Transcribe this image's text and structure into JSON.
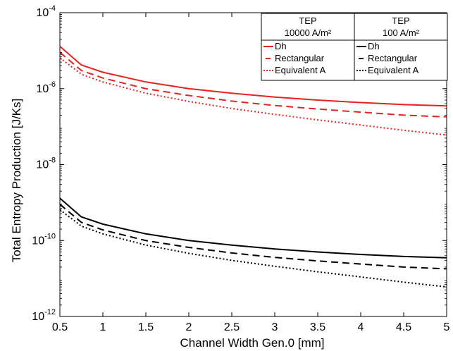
{
  "chart_data": {
    "type": "line",
    "xlabel": "Channel Width Gen.0 [mm]",
    "ylabel": "Total Entropy Production [J/Ks]",
    "xlim": [
      0.5,
      5
    ],
    "ylim_exponent": [
      -12,
      -4
    ],
    "yscale": "log",
    "x_ticks": [
      "0.5",
      "1",
      "1.5",
      "2",
      "2.5",
      "3",
      "3.5",
      "4",
      "4.5",
      "5"
    ],
    "y_ticks": [
      {
        "exp": -12,
        "base": "10",
        "sup": "-12"
      },
      {
        "exp": -10,
        "base": "10",
        "sup": "-10"
      },
      {
        "exp": -8,
        "base": "10",
        "sup": "-8"
      },
      {
        "exp": -6,
        "base": "10",
        "sup": "-6"
      },
      {
        "exp": -4,
        "base": "10",
        "sup": "-4"
      }
    ],
    "x": [
      0.5,
      0.75,
      1,
      1.5,
      2,
      2.5,
      3,
      3.5,
      4,
      4.5,
      5
    ],
    "series": [
      {
        "group": "10000",
        "name": "Dh",
        "color": "#e8231f",
        "style": "solid",
        "values": [
          1.3e-05,
          4.2e-06,
          2.7e-06,
          1.5e-06,
          1e-06,
          7.6e-07,
          6e-07,
          5e-07,
          4.3e-07,
          3.8e-07,
          3.5e-07
        ]
      },
      {
        "group": "10000",
        "name": "Rectangular",
        "color": "#e8231f",
        "style": "dashed",
        "values": [
          9e-06,
          3e-06,
          1.9e-06,
          1e-06,
          6.6e-07,
          4.7e-07,
          3.6e-07,
          2.9e-07,
          2.4e-07,
          2e-07,
          1.8e-07
        ]
      },
      {
        "group": "10000",
        "name": "Equivalent A",
        "color": "#e8231f",
        "style": "dotted",
        "values": [
          6.5e-06,
          2.4e-06,
          1.5e-06,
          7.6e-07,
          4.6e-07,
          3e-07,
          2.1e-07,
          1.5e-07,
          1.1e-07,
          8e-08,
          6e-08
        ]
      },
      {
        "group": "100",
        "name": "Dh",
        "color": "#000000",
        "style": "solid",
        "values": [
          1.3e-09,
          4.2e-10,
          2.7e-10,
          1.5e-10,
          1e-10,
          7.6e-11,
          6e-11,
          5e-11,
          4.3e-11,
          3.8e-11,
          3.5e-11
        ]
      },
      {
        "group": "100",
        "name": "Rectangular",
        "color": "#000000",
        "style": "dashed",
        "values": [
          9e-10,
          3e-10,
          1.9e-10,
          1e-10,
          6.6e-11,
          4.7e-11,
          3.6e-11,
          2.9e-11,
          2.4e-11,
          2e-11,
          1.8e-11
        ]
      },
      {
        "group": "100",
        "name": "Equivalent A",
        "color": "#000000",
        "style": "dotted",
        "values": [
          6.5e-10,
          2.4e-10,
          1.5e-10,
          7.6e-11,
          4.6e-11,
          3e-11,
          2.1e-11,
          1.5e-11,
          1.1e-11,
          8e-12,
          6e-12
        ]
      }
    ],
    "legend": {
      "placement": "top-right",
      "columns": [
        {
          "header": "TEP",
          "subheader": "10000 A/m²",
          "items": [
            "Dh",
            "Rectangular",
            "Equivalent A"
          ],
          "color": "#e8231f"
        },
        {
          "header": "TEP",
          "subheader": "100 A/m²",
          "items": [
            "Dh",
            "Rectangular",
            "Equivalent A"
          ],
          "color": "#000000"
        }
      ]
    }
  }
}
